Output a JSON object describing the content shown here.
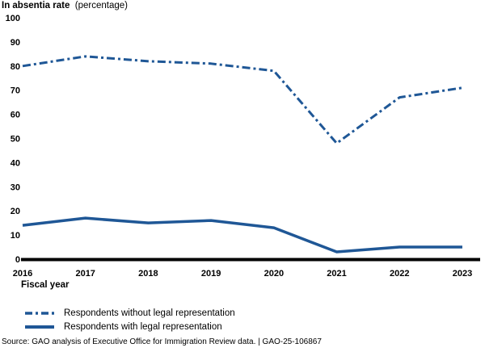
{
  "title": {
    "main": "In absentia rate",
    "qualifier": "(percentage)"
  },
  "chart_data": {
    "type": "line",
    "title": "In absentia rate (percentage)",
    "xlabel": "Fiscal year",
    "ylabel": "In absentia rate (percentage)",
    "categories": [
      "2016",
      "2017",
      "2018",
      "2019",
      "2020",
      "2021",
      "2022",
      "2023"
    ],
    "series": [
      {
        "name": "Respondents without legal representation",
        "line_style": "dash-dot",
        "values": [
          80,
          84,
          82,
          81,
          78,
          48,
          67,
          71
        ]
      },
      {
        "name": "Respondents with legal representation",
        "line_style": "solid",
        "values": [
          14,
          17,
          15,
          16,
          13,
          3,
          5,
          5
        ]
      }
    ],
    "ylim": [
      0,
      100
    ],
    "y_ticks": [
      0,
      10,
      20,
      30,
      40,
      50,
      60,
      70,
      80,
      90,
      100
    ],
    "grid": false,
    "legend_position": "bottom-left"
  },
  "colors": {
    "line_blue": "#1F5796",
    "axis_black": "#000000",
    "text_black": "#000000"
  },
  "source_note": "Source: GAO analysis of Executive Office for Immigration Review data.  |  GAO-25-106867"
}
